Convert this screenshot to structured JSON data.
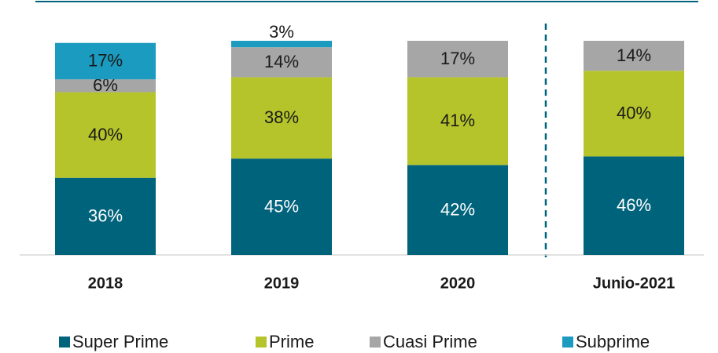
{
  "chart_data": {
    "type": "bar",
    "stacked": true,
    "categories": [
      "2018",
      "2019",
      "2020",
      "Junio-2021"
    ],
    "series": [
      {
        "name": "Super Prime",
        "color": "#00637c",
        "values": [
          36,
          45,
          42,
          46
        ],
        "value_labels": [
          "36%",
          "45%",
          "42%",
          "46%"
        ]
      },
      {
        "name": "Prime",
        "color": "#b5c42a",
        "values": [
          40,
          38,
          41,
          40
        ],
        "value_labels": [
          "40%",
          "38%",
          "41%",
          "40%"
        ]
      },
      {
        "name": "Cuasi Prime",
        "color": "#a6a6a6",
        "values": [
          6,
          14,
          17,
          14
        ],
        "value_labels": [
          "6%",
          "14%",
          "17%",
          "14%"
        ]
      },
      {
        "name": "Subprime",
        "color": "#1a9bbf",
        "values": [
          17,
          3,
          null,
          null
        ],
        "value_labels": [
          "17%",
          "3%",
          null,
          null
        ]
      }
    ],
    "ylim": [
      0,
      100
    ],
    "legend": "bottom"
  }
}
